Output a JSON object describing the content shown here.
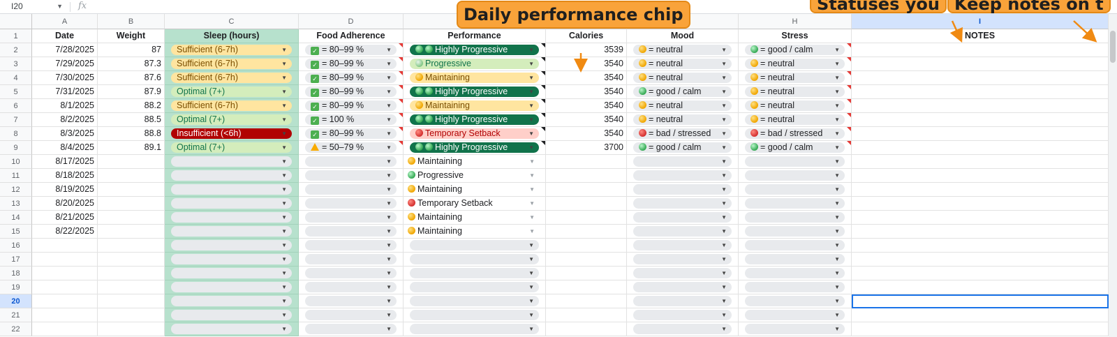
{
  "name_box": "I20",
  "fx_label": "fx",
  "columns": [
    "A",
    "B",
    "C",
    "D",
    "E",
    "F",
    "G",
    "H",
    "I"
  ],
  "row_numbers": [
    "1",
    "2",
    "3",
    "4",
    "5",
    "6",
    "7",
    "8",
    "9",
    "10",
    "11",
    "12",
    "13",
    "14",
    "15",
    "16",
    "17",
    "18",
    "19",
    "20",
    "21",
    "22"
  ],
  "selected_cell": {
    "column": "I",
    "row": "20"
  },
  "headers": {
    "date": "Date",
    "weight": "Weight",
    "sleep": "Sleep (hours)",
    "food": "Food Adherence",
    "performance": "Performance",
    "calories": "Calories",
    "mood": "Mood",
    "stress": "Stress",
    "notes": "NOTES"
  },
  "rows": [
    {
      "date": "7/28/2025",
      "weight": "87",
      "sleep": "Sufficient (6-7h)",
      "food": "= 80–99 %",
      "perf": "Highly Progressive",
      "calories": "3539",
      "mood": "= neutral",
      "stress": "= good / calm"
    },
    {
      "date": "7/29/2025",
      "weight": "87.3",
      "sleep": "Sufficient (6-7h)",
      "food": "= 80–99 %",
      "perf": "Progressive",
      "calories": "3540",
      "mood": "= neutral",
      "stress": "= neutral"
    },
    {
      "date": "7/30/2025",
      "weight": "87.6",
      "sleep": "Sufficient (6-7h)",
      "food": "= 80–99 %",
      "perf": "Maintaining",
      "calories": "3540",
      "mood": "= neutral",
      "stress": "= neutral"
    },
    {
      "date": "7/31/2025",
      "weight": "87.9",
      "sleep": "Optimal (7+)",
      "food": "= 80–99 %",
      "perf": "Highly Progressive",
      "calories": "3540",
      "mood": "= good / calm",
      "stress": "= neutral"
    },
    {
      "date": "8/1/2025",
      "weight": "88.2",
      "sleep": "Sufficient (6-7h)",
      "food": "= 80–99 %",
      "perf": "Maintaining",
      "calories": "3540",
      "mood": "= neutral",
      "stress": "= neutral"
    },
    {
      "date": "8/2/2025",
      "weight": "88.5",
      "sleep": "Optimal (7+)",
      "food": "= 100 %",
      "perf": "Highly Progressive",
      "calories": "3540",
      "mood": "= neutral",
      "stress": "= neutral"
    },
    {
      "date": "8/3/2025",
      "weight": "88.8",
      "sleep": "Insufficient (<6h)",
      "food": "= 80–99 %",
      "perf": "Temporary Setback",
      "calories": "3540",
      "mood": "= bad / stressed",
      "stress": "= bad / stressed"
    },
    {
      "date": "8/4/2025",
      "weight": "89.1",
      "sleep": "Optimal (7+)",
      "food": "= 50–79 %",
      "perf": "Highly Progressive",
      "calories": "3700",
      "mood": "= good / calm",
      "stress": "= good / calm"
    },
    {
      "date": "8/17/2025",
      "weight": "",
      "sleep": "",
      "food": "",
      "perf": "Maintaining",
      "calories": "",
      "mood": "",
      "stress": ""
    },
    {
      "date": "8/18/2025",
      "weight": "",
      "sleep": "",
      "food": "",
      "perf": "Progressive",
      "calories": "",
      "mood": "",
      "stress": ""
    },
    {
      "date": "8/19/2025",
      "weight": "",
      "sleep": "",
      "food": "",
      "perf": "Maintaining",
      "calories": "",
      "mood": "",
      "stress": ""
    },
    {
      "date": "8/20/2025",
      "weight": "",
      "sleep": "",
      "food": "",
      "perf": "Temporary Setback",
      "calories": "",
      "mood": "",
      "stress": ""
    },
    {
      "date": "8/21/2025",
      "weight": "",
      "sleep": "",
      "food": "",
      "perf": "Maintaining",
      "calories": "",
      "mood": "",
      "stress": ""
    },
    {
      "date": "8/22/2025",
      "weight": "",
      "sleep": "",
      "food": "",
      "perf": "Maintaining",
      "calories": "",
      "mood": "",
      "stress": ""
    },
    {
      "date": "",
      "weight": "",
      "sleep": "",
      "food": "",
      "perf": "",
      "calories": "",
      "mood": "",
      "stress": ""
    },
    {
      "date": "",
      "weight": "",
      "sleep": "",
      "food": "",
      "perf": "",
      "calories": "",
      "mood": "",
      "stress": ""
    },
    {
      "date": "",
      "weight": "",
      "sleep": "",
      "food": "",
      "perf": "",
      "calories": "",
      "mood": "",
      "stress": ""
    },
    {
      "date": "",
      "weight": "",
      "sleep": "",
      "food": "",
      "perf": "",
      "calories": "",
      "mood": "",
      "stress": ""
    },
    {
      "date": "",
      "weight": "",
      "sleep": "",
      "food": "",
      "perf": "",
      "calories": "",
      "mood": "",
      "stress": ""
    },
    {
      "date": "",
      "weight": "",
      "sleep": "",
      "food": "",
      "perf": "",
      "calories": "",
      "mood": "",
      "stress": ""
    },
    {
      "date": "",
      "weight": "",
      "sleep": "",
      "food": "",
      "perf": "",
      "calories": "",
      "mood": "",
      "stress": ""
    }
  ],
  "chip_styles": {
    "Sufficient (6-7h)": {
      "bg": "#ffe5a0",
      "fg": "#7a4f01"
    },
    "Optimal (7+)": {
      "bg": "#d4edbc",
      "fg": "#11734b"
    },
    "Insufficient (<6h)": {
      "bg": "#b10202",
      "fg": "#ffffff"
    },
    "Highly Progressive": {
      "bg": "#11734b",
      "fg": "#ffffff",
      "icon": "two-green-dots-icon"
    },
    "Progressive": {
      "bg": "#d4edbc",
      "fg": "#11734b",
      "icon": "green-dot-icon"
    },
    "Maintaining": {
      "bg": "#ffe5a0",
      "fg": "#7a4f01",
      "icon": "yellow-dot-icon"
    },
    "Temporary Setback": {
      "bg": "#ffcfc9",
      "fg": "#b10202",
      "icon": "red-dot-icon"
    }
  },
  "annotations": {
    "performance_chip": "Daily performance chip",
    "statuses": "Statuses you",
    "keep_notes": "Keep notes on t"
  },
  "colors": {
    "selection": "#1a73e8",
    "sleep_column_fill": "#b7e1cd",
    "callout_fill": "#f9a33a",
    "arrow": "#f08a12"
  }
}
